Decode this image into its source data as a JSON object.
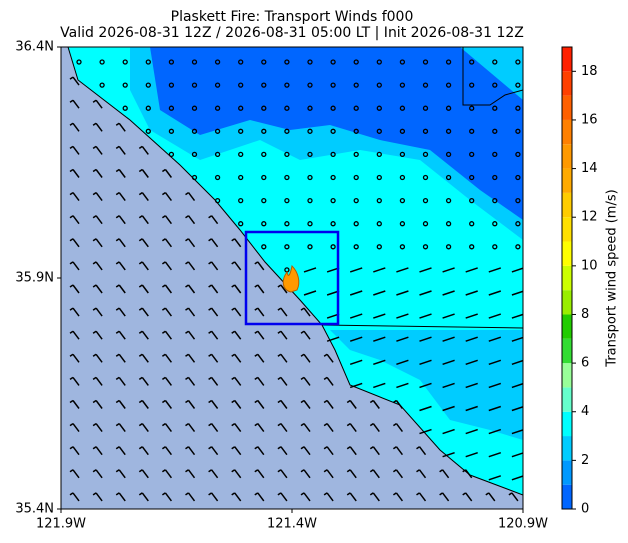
{
  "title": "Plaskett Fire: Transport Winds f000",
  "subtitle": "Valid 2026-08-31 12Z / 2026-08-31 05:00 LT | Init 2026-08-31 12Z",
  "map": {
    "xlim": [
      -121.9,
      -120.9
    ],
    "ylim": [
      35.4,
      36.4
    ],
    "xticks": [
      {
        "value": -121.9,
        "label": "121.9W"
      },
      {
        "value": -121.4,
        "label": "121.4W"
      },
      {
        "value": -120.9,
        "label": "120.9W"
      }
    ],
    "yticks": [
      {
        "value": 35.4,
        "label": "35.4N"
      },
      {
        "value": 35.9,
        "label": "35.9N"
      },
      {
        "value": 36.4,
        "label": "36.4N"
      }
    ]
  },
  "colorbar": {
    "label": "Transport wind speed (m/s)",
    "lim": [
      0,
      19
    ],
    "ticks": [
      0,
      2,
      4,
      6,
      8,
      10,
      12,
      14,
      16,
      18
    ],
    "colors": [
      "#0066ff",
      "#0099ff",
      "#00ccff",
      "#00ffff",
      "#66ffcc",
      "#99ff99",
      "#33dd33",
      "#22cc00",
      "#99ee00",
      "#ccff00",
      "#ffff00",
      "#ffe000",
      "#ffcc00",
      "#ffaa00",
      "#ff9900",
      "#ff8000",
      "#ff6000",
      "#ff4000",
      "#ff2000"
    ]
  }
}
